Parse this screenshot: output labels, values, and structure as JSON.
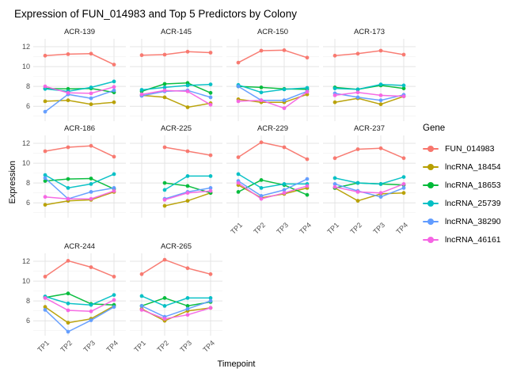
{
  "chart_data": {
    "type": "line",
    "title": "Expression of FUN_014983 and Top 5 Predictors by Colony",
    "xlabel": "Timepoint",
    "ylabel": "Expression",
    "legend_title": "Gene",
    "x": [
      "TP1",
      "TP2",
      "TP3",
      "TP4"
    ],
    "ylim": [
      4.5,
      12.8
    ],
    "y_major_ticks": [
      12,
      10,
      8,
      6
    ],
    "y_minor_gridlines": [
      5,
      7,
      9,
      11
    ],
    "genes": [
      {
        "name": "FUN_014983",
        "color": "#F8766D"
      },
      {
        "name": "lncRNA_18454",
        "color": "#B79F00"
      },
      {
        "name": "lncRNA_18653",
        "color": "#00BA38"
      },
      {
        "name": "lncRNA_25739",
        "color": "#00BFC4"
      },
      {
        "name": "lncRNA_38290",
        "color": "#619CFF"
      },
      {
        "name": "lncRNA_46161",
        "color": "#F564E3"
      }
    ],
    "facets": {
      "ACR-139": {
        "FUN_014983": [
          11.1,
          11.25,
          11.3,
          10.2
        ],
        "lncRNA_18454": [
          6.5,
          6.6,
          6.2,
          6.4
        ],
        "lncRNA_18653": [
          7.8,
          7.75,
          7.8,
          7.4
        ],
        "lncRNA_25739": [
          7.75,
          7.5,
          7.9,
          8.5
        ],
        "lncRNA_38290": [
          5.45,
          7.2,
          6.8,
          7.6
        ],
        "lncRNA_46161": [
          8.0,
          7.35,
          7.3,
          7.95
        ]
      },
      "ACR-145": {
        "FUN_014983": [
          11.15,
          11.2,
          11.5,
          11.4
        ],
        "lncRNA_18454": [
          7.1,
          6.9,
          5.9,
          6.3
        ],
        "lncRNA_18653": [
          7.5,
          8.25,
          8.35,
          7.35
        ],
        "lncRNA_25739": [
          7.65,
          7.9,
          8.1,
          8.2
        ],
        "lncRNA_38290": [
          7.05,
          7.5,
          7.6,
          6.9
        ],
        "lncRNA_46161": [
          7.2,
          7.6,
          7.5,
          6.15
        ]
      },
      "ACR-150": {
        "FUN_014983": [
          10.4,
          11.6,
          11.65,
          10.9
        ],
        "lncRNA_18454": [
          6.7,
          6.4,
          6.4,
          7.2
        ],
        "lncRNA_18653": [
          8.0,
          7.9,
          7.75,
          7.7
        ],
        "lncRNA_25739": [
          8.15,
          7.4,
          7.7,
          7.85
        ],
        "lncRNA_38290": [
          8.0,
          6.6,
          6.6,
          7.5
        ],
        "lncRNA_46161": [
          6.5,
          6.6,
          5.8,
          7.45
        ]
      },
      "ACR-173": {
        "FUN_014983": [
          11.1,
          11.3,
          11.6,
          11.2
        ],
        "lncRNA_18454": [
          6.4,
          6.8,
          6.2,
          7.0
        ],
        "lncRNA_18653": [
          7.9,
          7.7,
          8.1,
          7.8
        ],
        "lncRNA_25739": [
          7.8,
          7.7,
          8.2,
          8.1
        ],
        "lncRNA_38290": [
          7.3,
          6.9,
          6.6,
          7.15
        ],
        "lncRNA_46161": [
          7.1,
          7.4,
          7.1,
          7.0
        ]
      },
      "ACR-186": {
        "FUN_014983": [
          11.2,
          11.6,
          11.75,
          10.65
        ],
        "lncRNA_18454": [
          5.8,
          6.2,
          6.3,
          7.1
        ],
        "lncRNA_18653": [
          8.2,
          8.4,
          8.45,
          7.4
        ],
        "lncRNA_25739": [
          8.8,
          7.5,
          7.9,
          8.9
        ],
        "lncRNA_38290": [
          8.5,
          6.4,
          7.1,
          7.5
        ],
        "lncRNA_46161": [
          6.6,
          6.4,
          6.4,
          7.2
        ]
      },
      "ACR-225": {
        "FUN_014983": [
          null,
          11.6,
          11.2,
          10.8
        ],
        "lncRNA_18454": [
          null,
          5.7,
          6.2,
          7.0
        ],
        "lncRNA_18653": [
          null,
          8.0,
          7.7,
          7.0
        ],
        "lncRNA_25739": [
          null,
          7.3,
          8.7,
          8.7
        ],
        "lncRNA_38290": [
          null,
          6.4,
          7.1,
          7.5
        ],
        "lncRNA_46161": [
          null,
          6.3,
          7.0,
          7.2
        ]
      },
      "ACR-229": {
        "FUN_014983": [
          10.6,
          12.1,
          11.6,
          10.4
        ],
        "lncRNA_18454": [
          7.8,
          6.5,
          6.9,
          7.5
        ],
        "lncRNA_18653": [
          7.1,
          8.3,
          7.8,
          6.8
        ],
        "lncRNA_25739": [
          8.9,
          7.5,
          7.9,
          7.9
        ],
        "lncRNA_38290": [
          8.2,
          6.7,
          7.3,
          8.4
        ],
        "lncRNA_46161": [
          8.0,
          6.4,
          7.0,
          7.7
        ]
      },
      "ACR-237": {
        "FUN_014983": [
          10.5,
          11.4,
          11.5,
          10.5
        ],
        "lncRNA_18454": [
          7.5,
          6.2,
          6.9,
          7.0
        ],
        "lncRNA_18653": [
          7.5,
          8.0,
          7.9,
          7.8
        ],
        "lncRNA_25739": [
          8.5,
          8.0,
          7.9,
          8.6
        ],
        "lncRNA_38290": [
          7.9,
          7.2,
          6.6,
          7.5
        ],
        "lncRNA_46161": [
          7.6,
          7.1,
          7.0,
          7.9
        ]
      },
      "ACR-244": {
        "FUN_014983": [
          10.45,
          12.05,
          11.4,
          10.45
        ],
        "lncRNA_18454": [
          7.4,
          5.8,
          6.2,
          7.5
        ],
        "lncRNA_18653": [
          8.35,
          8.75,
          7.7,
          7.6
        ],
        "lncRNA_25739": [
          8.45,
          7.75,
          7.6,
          8.6
        ],
        "lncRNA_38290": [
          7.1,
          4.9,
          6.05,
          7.4
        ],
        "lncRNA_46161": [
          8.3,
          7.05,
          6.95,
          8.1
        ]
      },
      "ACR-265": {
        "FUN_014983": [
          10.7,
          12.15,
          11.3,
          10.7
        ],
        "lncRNA_18454": [
          7.2,
          6.0,
          7.0,
          7.3
        ],
        "lncRNA_18653": [
          7.5,
          8.3,
          7.5,
          7.9
        ],
        "lncRNA_25739": [
          8.5,
          7.5,
          8.3,
          8.3
        ],
        "lncRNA_38290": [
          7.5,
          6.4,
          7.2,
          8.0
        ],
        "lncRNA_46161": [
          7.1,
          6.2,
          6.6,
          7.3
        ]
      }
    },
    "layout": [
      [
        {
          "facet": "ACR-139",
          "x_axis": false
        },
        {
          "facet": "ACR-145",
          "x_axis": false
        },
        {
          "facet": "ACR-150",
          "x_axis": false
        },
        {
          "facet": "ACR-173",
          "x_axis": false
        }
      ],
      [
        {
          "facet": "ACR-186",
          "x_axis": false
        },
        {
          "facet": "ACR-225",
          "x_axis": false
        },
        {
          "facet": "ACR-229",
          "x_axis": true
        },
        {
          "facet": "ACR-237",
          "x_axis": true
        }
      ],
      [
        {
          "facet": "ACR-244",
          "x_axis": true
        },
        {
          "facet": "ACR-265",
          "x_axis": true
        },
        {
          "facet": null,
          "x_axis": false
        },
        {
          "facet": null,
          "x_axis": false
        }
      ]
    ],
    "grid_color_major": "#E4E4E4",
    "grid_color_minor": "#F0F0F0"
  }
}
